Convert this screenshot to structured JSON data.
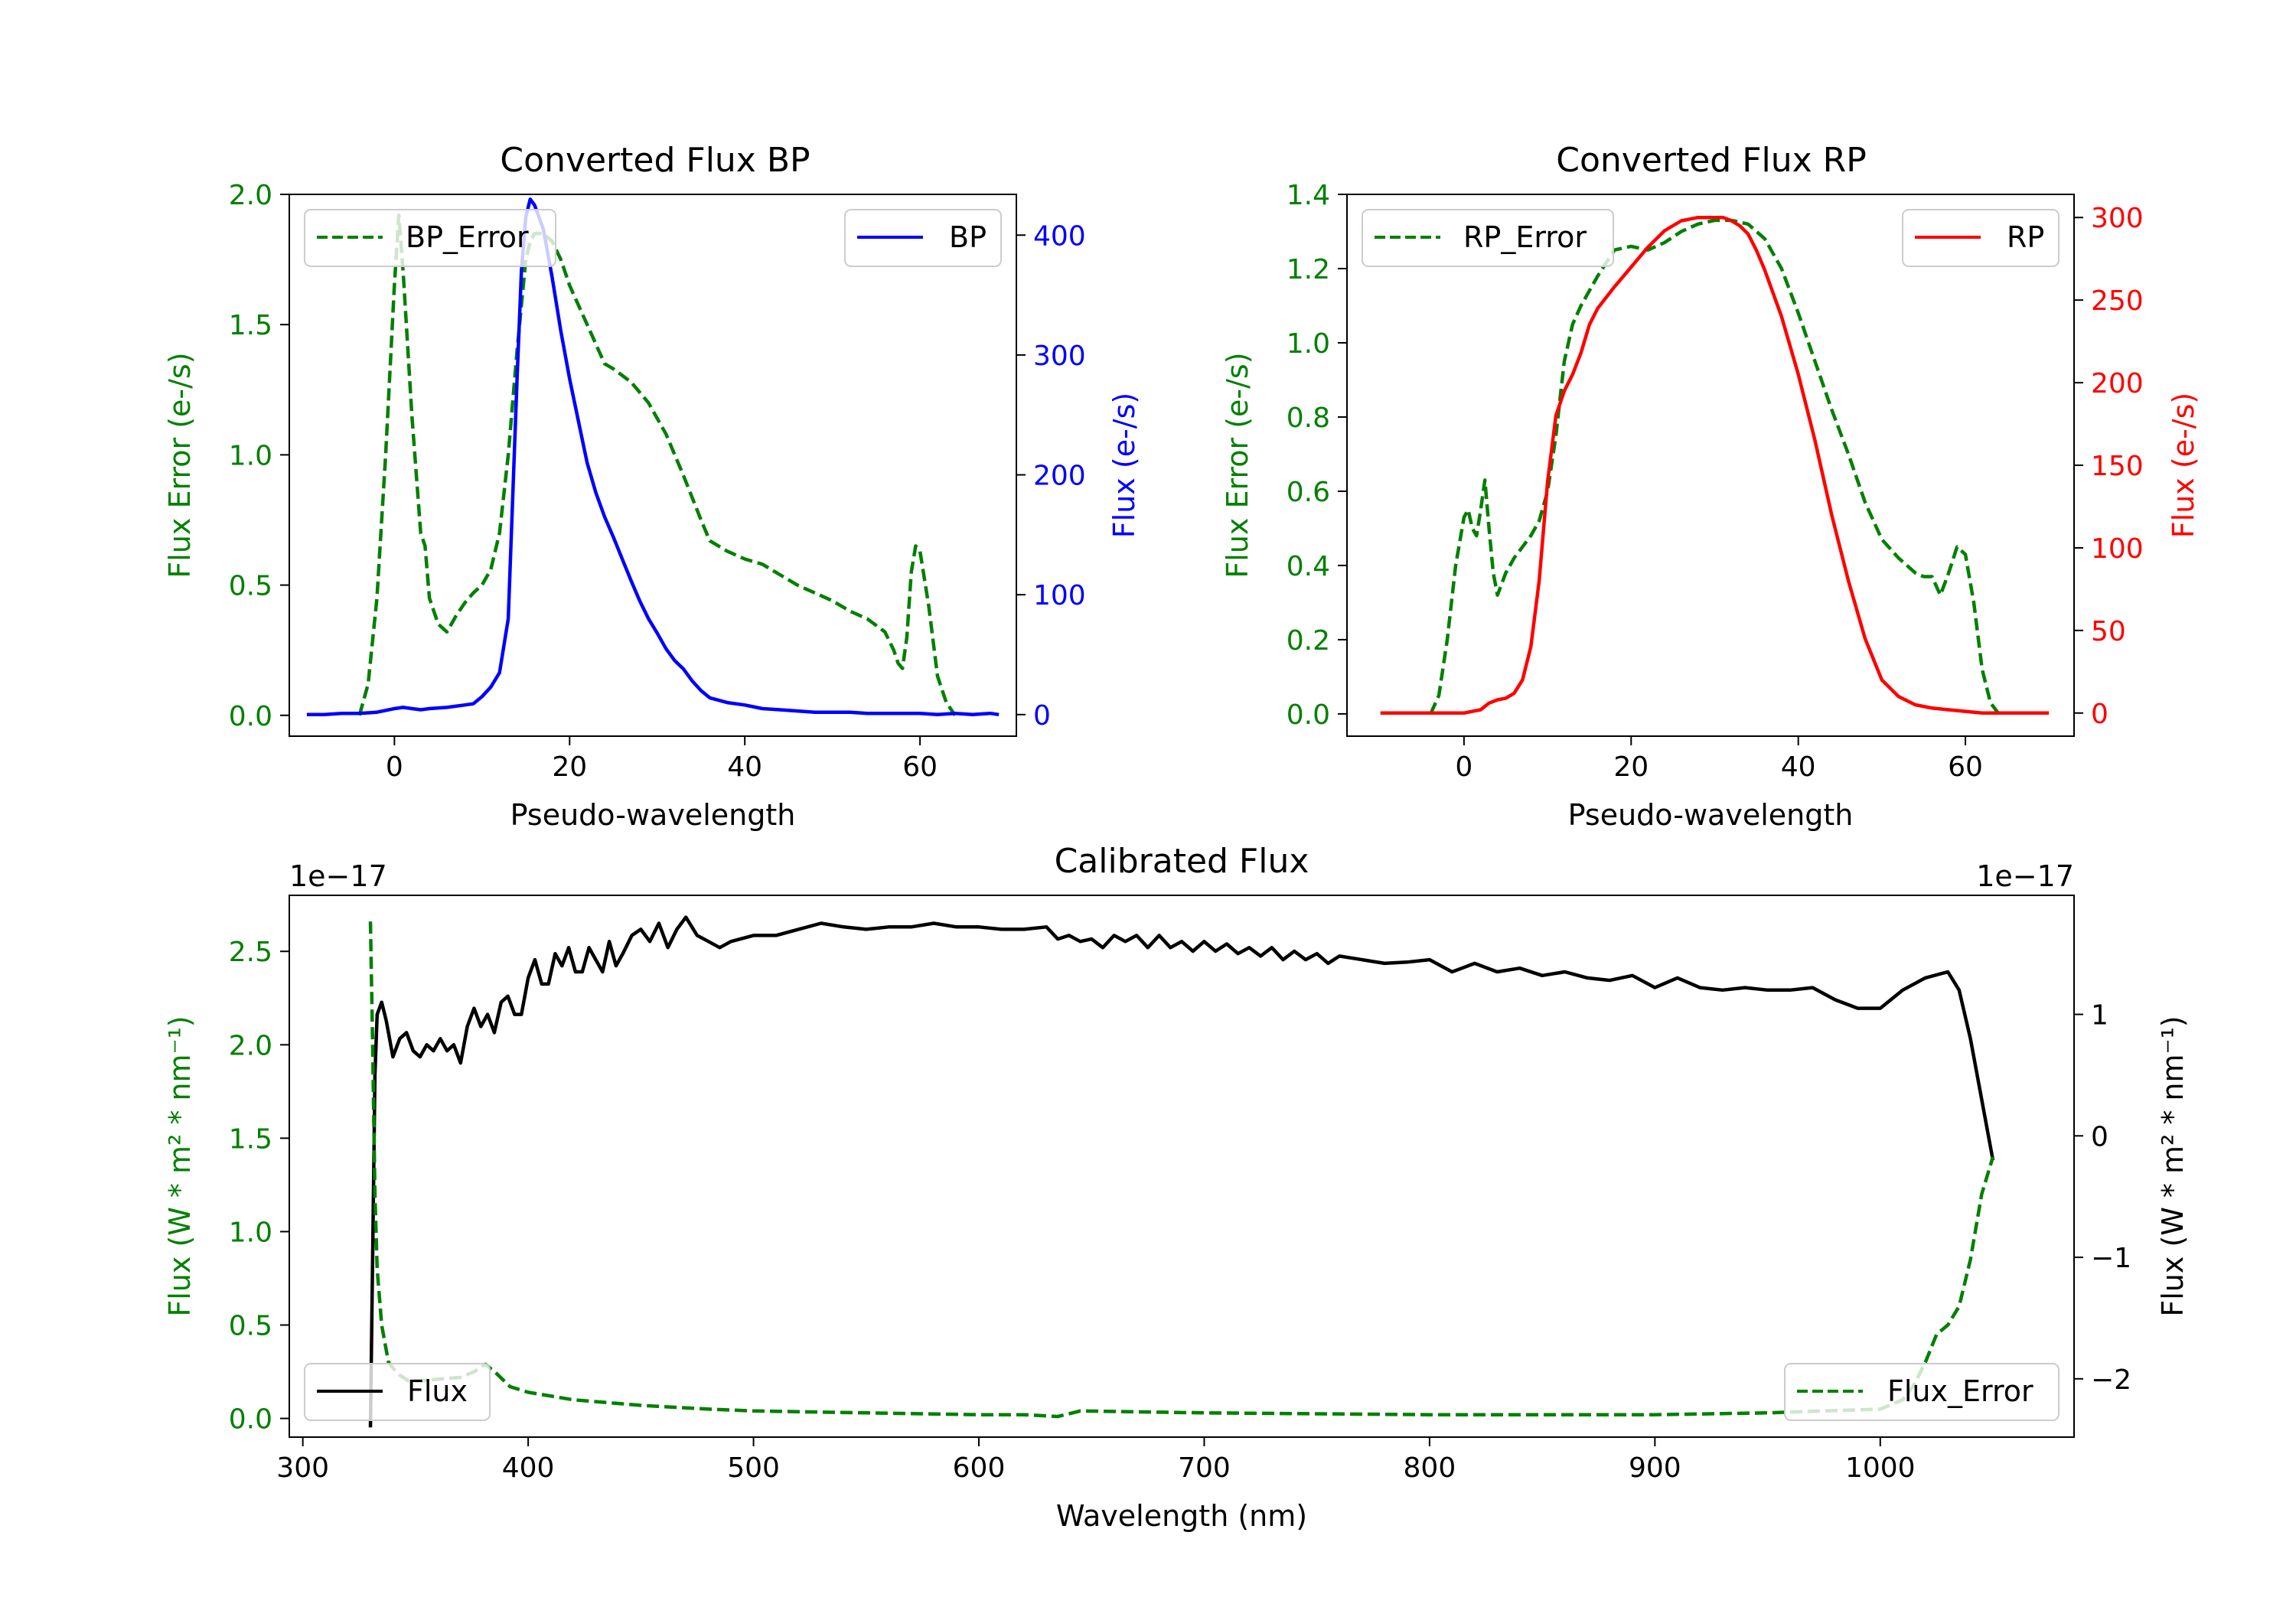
{
  "colors": {
    "error": "#008000",
    "bp": "#0000ff",
    "rp": "#ff0000",
    "flux": "#000000",
    "axis": "#000000"
  },
  "chart_data": [
    {
      "id": "bp",
      "type": "line",
      "title": "Converted Flux BP",
      "xlabel": "Pseudo-wavelength",
      "ylabel_left": "Flux Error (e-/s)",
      "ylabel_right": "Flux (e-/s)",
      "xlim": [
        -12,
        71
      ],
      "ylim_left": [
        -0.08,
        2.0
      ],
      "ylim_right": [
        -18,
        434
      ],
      "xticks": [
        0,
        20,
        40,
        60
      ],
      "yticks_left": [
        "0.0",
        "0.5",
        "1.0",
        "1.5",
        "2.0"
      ],
      "yticks_right": [
        "0",
        "100",
        "200",
        "300",
        "400"
      ],
      "legend_left": "BP_Error",
      "legend_right": "BP",
      "series": [
        {
          "name": "BP_Error",
          "axis": "left",
          "style": "dashed",
          "color": "#008000",
          "x": [
            -4,
            -3,
            -2,
            -1,
            0,
            0.5,
            1,
            2,
            3,
            3.5,
            4,
            5,
            6,
            7,
            8,
            9,
            10,
            11,
            12,
            13,
            14,
            15,
            15.5,
            16,
            17,
            18,
            19,
            20,
            22,
            24,
            25,
            27,
            29,
            31,
            33,
            35,
            36,
            38,
            40,
            42,
            44,
            46,
            48,
            50,
            52,
            54,
            56,
            57,
            57.5,
            58,
            58.5,
            59,
            59.5,
            60,
            61,
            62,
            63,
            64
          ],
          "y": [
            0.0,
            0.12,
            0.45,
            1.0,
            1.65,
            1.92,
            1.7,
            1.15,
            0.7,
            0.65,
            0.45,
            0.35,
            0.32,
            0.38,
            0.43,
            0.47,
            0.5,
            0.56,
            0.7,
            1.0,
            1.4,
            1.75,
            1.82,
            1.85,
            1.85,
            1.82,
            1.75,
            1.65,
            1.5,
            1.35,
            1.33,
            1.28,
            1.2,
            1.08,
            0.92,
            0.75,
            0.67,
            0.63,
            0.6,
            0.58,
            0.54,
            0.5,
            0.47,
            0.44,
            0.4,
            0.37,
            0.32,
            0.25,
            0.2,
            0.18,
            0.3,
            0.55,
            0.65,
            0.63,
            0.42,
            0.15,
            0.05,
            0.0
          ]
        },
        {
          "name": "BP",
          "axis": "right",
          "style": "solid",
          "color": "#0000ff",
          "x": [
            -10,
            -8,
            -6,
            -4,
            -2,
            0,
            1,
            2,
            3,
            4,
            6,
            8,
            9,
            10,
            11,
            12,
            13,
            14,
            14.5,
            15,
            15.5,
            16,
            17,
            18,
            19,
            20,
            21,
            22,
            23,
            24,
            25,
            26,
            27,
            28,
            29,
            30,
            31,
            32,
            33,
            34,
            35,
            36,
            38,
            40,
            42,
            44,
            46,
            48,
            50,
            52,
            54,
            56,
            58,
            60,
            62,
            64,
            66,
            68,
            69
          ],
          "y": [
            0,
            0,
            1,
            1,
            2,
            5,
            6,
            5,
            4,
            5,
            6,
            8,
            9,
            15,
            23,
            35,
            80,
            280,
            370,
            415,
            430,
            425,
            405,
            365,
            320,
            280,
            245,
            210,
            185,
            165,
            148,
            130,
            112,
            95,
            80,
            68,
            55,
            45,
            38,
            28,
            20,
            14,
            10,
            8,
            5,
            4,
            3,
            2,
            2,
            2,
            1,
            1,
            1,
            1,
            0,
            1,
            0,
            1,
            0
          ]
        }
      ]
    },
    {
      "id": "rp",
      "type": "line",
      "title": "Converted Flux RP",
      "xlabel": "Pseudo-wavelength",
      "ylabel_left": "Flux Error (e-/s)",
      "ylabel_right": "Flux (e-/s)",
      "xlim": [
        -14,
        73
      ],
      "ylim_left": [
        -0.06,
        1.4
      ],
      "ylim_right": [
        -14,
        314
      ],
      "xticks": [
        0,
        20,
        40,
        60
      ],
      "yticks_left": [
        "0.0",
        "0.2",
        "0.4",
        "0.6",
        "0.8",
        "1.0",
        "1.2",
        "1.4"
      ],
      "yticks_right": [
        "0",
        "50",
        "100",
        "150",
        "200",
        "250",
        "300"
      ],
      "legend_left": "RP_Error",
      "legend_right": "RP",
      "series": [
        {
          "name": "RP_Error",
          "axis": "left",
          "style": "dashed",
          "color": "#008000",
          "x": [
            -4,
            -3,
            -2,
            -1,
            0,
            0.5,
            1,
            1.5,
            2,
            2.5,
            3,
            3.5,
            4,
            5,
            6,
            7,
            8,
            9,
            10,
            11,
            12,
            13,
            14,
            16,
            18,
            20,
            22,
            24,
            26,
            28,
            30,
            32,
            34,
            36,
            38,
            40,
            42,
            44,
            46,
            48,
            50,
            52,
            54,
            55,
            56,
            57,
            58,
            59,
            60,
            61,
            62,
            63,
            64
          ],
          "y": [
            0.0,
            0.05,
            0.2,
            0.4,
            0.53,
            0.55,
            0.5,
            0.48,
            0.55,
            0.63,
            0.5,
            0.38,
            0.32,
            0.38,
            0.42,
            0.45,
            0.48,
            0.52,
            0.6,
            0.75,
            0.95,
            1.05,
            1.1,
            1.18,
            1.25,
            1.26,
            1.25,
            1.27,
            1.3,
            1.32,
            1.33,
            1.33,
            1.32,
            1.28,
            1.2,
            1.08,
            0.95,
            0.82,
            0.7,
            0.57,
            0.47,
            0.42,
            0.38,
            0.37,
            0.37,
            0.32,
            0.38,
            0.45,
            0.43,
            0.3,
            0.12,
            0.03,
            0.0
          ]
        },
        {
          "name": "RP",
          "axis": "right",
          "style": "solid",
          "color": "#ff0000",
          "x": [
            -10,
            -6,
            -4,
            -2,
            0,
            1,
            2,
            3,
            4,
            5,
            6,
            7,
            8,
            9,
            10,
            11,
            12,
            13,
            14,
            15,
            16,
            18,
            20,
            22,
            24,
            26,
            28,
            30,
            31,
            32,
            33,
            34,
            35,
            36,
            38,
            40,
            42,
            44,
            46,
            48,
            50,
            52,
            54,
            56,
            58,
            60,
            62,
            64,
            66,
            68,
            70
          ],
          "y": [
            0,
            0,
            0,
            0,
            0,
            1,
            2,
            6,
            8,
            9,
            12,
            20,
            40,
            80,
            140,
            180,
            195,
            205,
            218,
            235,
            245,
            258,
            270,
            282,
            292,
            298,
            300,
            300,
            300,
            298,
            295,
            290,
            280,
            268,
            240,
            205,
            165,
            120,
            80,
            45,
            20,
            10,
            5,
            3,
            2,
            1,
            0,
            0,
            0,
            0,
            0
          ]
        }
      ]
    },
    {
      "id": "cal",
      "type": "line",
      "title": "Calibrated Flux",
      "xlabel": "Wavelength (nm)",
      "ylabel_left": "Flux (W * m² * nm⁻¹)",
      "ylabel_right": "Flux (W * m² * nm⁻¹)",
      "offset_left": "1e−17",
      "offset_right": "1e−17",
      "xlim": [
        294,
        1086
      ],
      "ylim_left": [
        -0.1,
        2.8
      ],
      "ylim_right": [
        -2.48,
        1.98
      ],
      "xticks": [
        "300",
        "400",
        "500",
        "600",
        "700",
        "800",
        "900",
        "1000"
      ],
      "yticks_left": [
        "0.0",
        "0.5",
        "1.0",
        "1.5",
        "2.0",
        "2.5"
      ],
      "yticks_right": [
        "−2",
        "−1",
        "0",
        "1"
      ],
      "legend_left": "Flux",
      "legend_right": "Flux_Error",
      "series": [
        {
          "name": "Flux",
          "axis": "right",
          "style": "solid",
          "color": "#000000",
          "x": [
            330,
            331,
            332,
            333,
            335,
            337,
            340,
            343,
            346,
            349,
            352,
            355,
            358,
            361,
            364,
            367,
            370,
            373,
            376,
            379,
            382,
            385,
            388,
            391,
            394,
            397,
            400,
            403,
            406,
            409,
            412,
            415,
            418,
            421,
            424,
            427,
            430,
            433,
            436,
            439,
            442,
            446,
            450,
            454,
            458,
            462,
            466,
            470,
            475,
            480,
            485,
            490,
            500,
            510,
            520,
            530,
            540,
            550,
            560,
            570,
            580,
            590,
            600,
            610,
            620,
            630,
            635,
            640,
            645,
            650,
            655,
            660,
            665,
            670,
            675,
            680,
            685,
            690,
            695,
            700,
            705,
            710,
            715,
            720,
            725,
            730,
            735,
            740,
            745,
            750,
            755,
            760,
            770,
            780,
            790,
            800,
            810,
            820,
            830,
            840,
            850,
            860,
            870,
            880,
            890,
            900,
            910,
            920,
            930,
            940,
            950,
            960,
            970,
            980,
            990,
            1000,
            1010,
            1020,
            1030,
            1035,
            1040,
            1045,
            1050
          ],
          "y": [
            -2.4,
            -1.0,
            0.5,
            1.0,
            1.1,
            0.95,
            0.65,
            0.8,
            0.85,
            0.7,
            0.65,
            0.75,
            0.7,
            0.8,
            0.7,
            0.75,
            0.6,
            0.9,
            1.05,
            0.9,
            1.0,
            0.85,
            1.1,
            1.15,
            1.0,
            1.0,
            1.3,
            1.45,
            1.25,
            1.25,
            1.5,
            1.4,
            1.55,
            1.35,
            1.35,
            1.55,
            1.45,
            1.35,
            1.6,
            1.4,
            1.5,
            1.65,
            1.7,
            1.6,
            1.75,
            1.55,
            1.7,
            1.8,
            1.65,
            1.6,
            1.55,
            1.6,
            1.65,
            1.65,
            1.7,
            1.75,
            1.72,
            1.7,
            1.72,
            1.72,
            1.75,
            1.72,
            1.72,
            1.7,
            1.7,
            1.72,
            1.62,
            1.65,
            1.6,
            1.62,
            1.55,
            1.65,
            1.6,
            1.65,
            1.55,
            1.65,
            1.55,
            1.6,
            1.52,
            1.6,
            1.52,
            1.58,
            1.5,
            1.55,
            1.48,
            1.55,
            1.45,
            1.52,
            1.45,
            1.5,
            1.42,
            1.48,
            1.45,
            1.42,
            1.43,
            1.45,
            1.35,
            1.42,
            1.35,
            1.38,
            1.32,
            1.35,
            1.3,
            1.28,
            1.32,
            1.22,
            1.3,
            1.22,
            1.2,
            1.22,
            1.2,
            1.2,
            1.22,
            1.12,
            1.05,
            1.05,
            1.2,
            1.3,
            1.35,
            1.2,
            0.8,
            0.3,
            -0.2
          ]
        },
        {
          "name": "Flux_Error",
          "axis": "left",
          "style": "dashed",
          "color": "#008000",
          "x": [
            330,
            331,
            332,
            333,
            335,
            338,
            342,
            347,
            352,
            360,
            370,
            376,
            381,
            386,
            392,
            400,
            420,
            450,
            480,
            500,
            550,
            600,
            620,
            635,
            645,
            700,
            800,
            900,
            950,
            1000,
            1010,
            1015,
            1020,
            1025,
            1030,
            1035,
            1040,
            1045,
            1050
          ],
          "y": [
            2.66,
            2.0,
            1.2,
            0.8,
            0.5,
            0.3,
            0.24,
            0.2,
            0.2,
            0.21,
            0.22,
            0.25,
            0.29,
            0.24,
            0.17,
            0.14,
            0.1,
            0.07,
            0.05,
            0.04,
            0.03,
            0.02,
            0.02,
            0.01,
            0.04,
            0.03,
            0.02,
            0.02,
            0.03,
            0.05,
            0.1,
            0.18,
            0.3,
            0.45,
            0.5,
            0.6,
            0.85,
            1.2,
            1.4
          ]
        }
      ]
    }
  ]
}
